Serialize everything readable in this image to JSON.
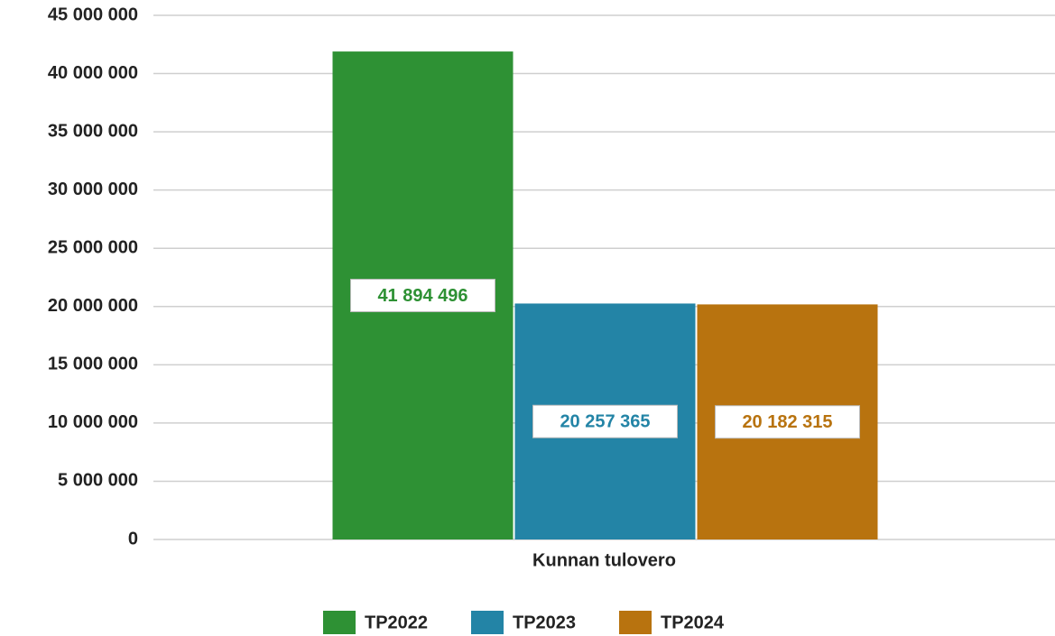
{
  "chart_data": {
    "type": "bar",
    "categories": [
      "Kunnan tulovero"
    ],
    "series": [
      {
        "name": "TP2022",
        "color": "#2e9134",
        "values": [
          41894496
        ],
        "value_labels": [
          "41 894 496"
        ]
      },
      {
        "name": "TP2023",
        "color": "#2384a6",
        "values": [
          20257365
        ],
        "value_labels": [
          "20 257 365"
        ]
      },
      {
        "name": "TP2024",
        "color": "#b8730f",
        "values": [
          20182315
        ],
        "value_labels": [
          "20 182 315"
        ]
      }
    ],
    "ylim": [
      0,
      45000000
    ],
    "yticks": [
      {
        "value": 0,
        "label": "0"
      },
      {
        "value": 5000000,
        "label": "5 000 000"
      },
      {
        "value": 10000000,
        "label": "10 000 000"
      },
      {
        "value": 15000000,
        "label": "15 000 000"
      },
      {
        "value": 20000000,
        "label": "20 000 000"
      },
      {
        "value": 25000000,
        "label": "25 000 000"
      },
      {
        "value": 30000000,
        "label": "30 000 000"
      },
      {
        "value": 35000000,
        "label": "35 000 000"
      },
      {
        "value": 40000000,
        "label": "40 000 000"
      },
      {
        "value": 45000000,
        "label": "45 000 000"
      }
    ],
    "grid": true,
    "legend": "bottom"
  }
}
